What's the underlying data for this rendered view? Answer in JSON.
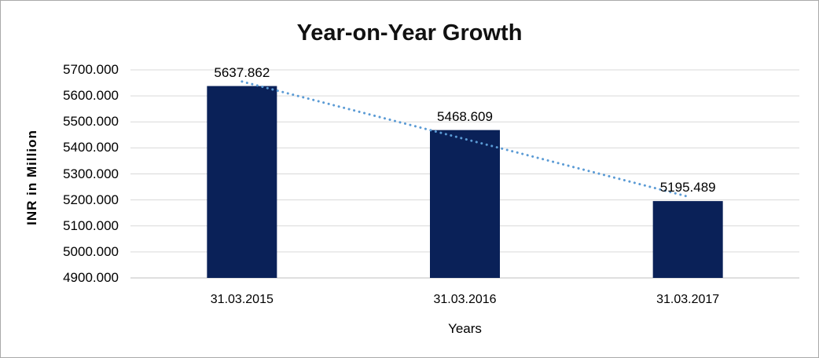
{
  "chart_data": {
    "type": "bar",
    "title": "Year-on-Year Growth",
    "categories": [
      "31.03.2015",
      "31.03.2016",
      "31.03.2017"
    ],
    "values": [
      5637.862,
      5468.609,
      5195.489
    ],
    "data_labels": [
      "5637.862",
      "5468.609",
      "5195.489"
    ],
    "xlabel": "Years",
    "ylabel": "INR in Million",
    "ylim": [
      4900,
      5700
    ],
    "y_tick_step": 100,
    "y_ticks": [
      "4900.000",
      "5000.000",
      "5100.000",
      "5200.000",
      "5300.000",
      "5400.000",
      "5500.000",
      "5600.000",
      "5700.000"
    ],
    "grid": true,
    "legend": "none",
    "trendline": {
      "type": "linear",
      "style": "dotted"
    },
    "colors": {
      "bar": "#0a2158",
      "trendline": "#5b9bd5",
      "gridline": "#d9d9d9",
      "axis_line": "#bfbfbf",
      "text": "#000000",
      "background": "#ffffff",
      "border": "#a9a9a9"
    }
  }
}
